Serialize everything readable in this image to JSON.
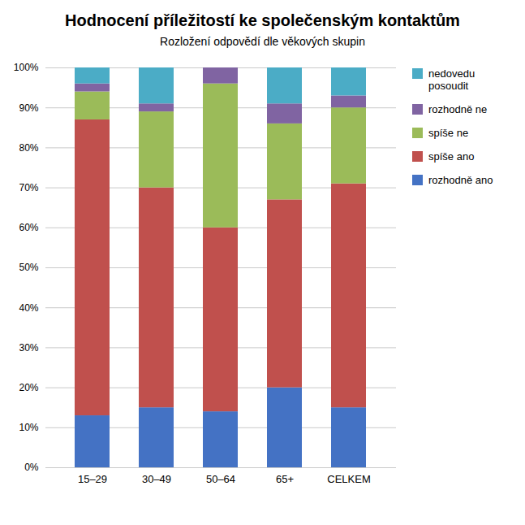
{
  "chart_data": {
    "type": "bar",
    "stacked": true,
    "title": "Hodnocení příležitostí ke společenským kontaktům",
    "subtitle": "Rozložení odpovědí dle věkových skupin",
    "categories": [
      "15–29",
      "30–49",
      "50–64",
      "65+",
      "CELKEM"
    ],
    "series": [
      {
        "name": "rozhodně ano",
        "color": "#4472c4",
        "values": [
          13,
          15,
          14,
          20,
          15
        ]
      },
      {
        "name": "spíše ano",
        "color": "#c0504d",
        "values": [
          74,
          55,
          46,
          47,
          56
        ]
      },
      {
        "name": "spíše ne",
        "color": "#9bbb59",
        "values": [
          7,
          19,
          36,
          19,
          19
        ]
      },
      {
        "name": "rozhodně ne",
        "color": "#8064a2",
        "values": [
          2,
          2,
          4,
          5,
          3
        ]
      },
      {
        "name": "nedovedu posoudit",
        "color": "#4bacc6",
        "values": [
          4,
          9,
          0,
          9,
          7
        ]
      }
    ],
    "ylim": [
      0,
      100
    ],
    "yticks": [
      {
        "value": 0,
        "label": "0%"
      },
      {
        "value": 10,
        "label": "10%"
      },
      {
        "value": 20,
        "label": "20%"
      },
      {
        "value": 30,
        "label": "30%"
      },
      {
        "value": 40,
        "label": "40%"
      },
      {
        "value": 50,
        "label": "50%"
      },
      {
        "value": 60,
        "label": "60%"
      },
      {
        "value": 70,
        "label": "70%"
      },
      {
        "value": 80,
        "label": "80%"
      },
      {
        "value": 90,
        "label": "90%"
      },
      {
        "value": 100,
        "label": "100%"
      }
    ],
    "grid": true,
    "legend": "right"
  }
}
